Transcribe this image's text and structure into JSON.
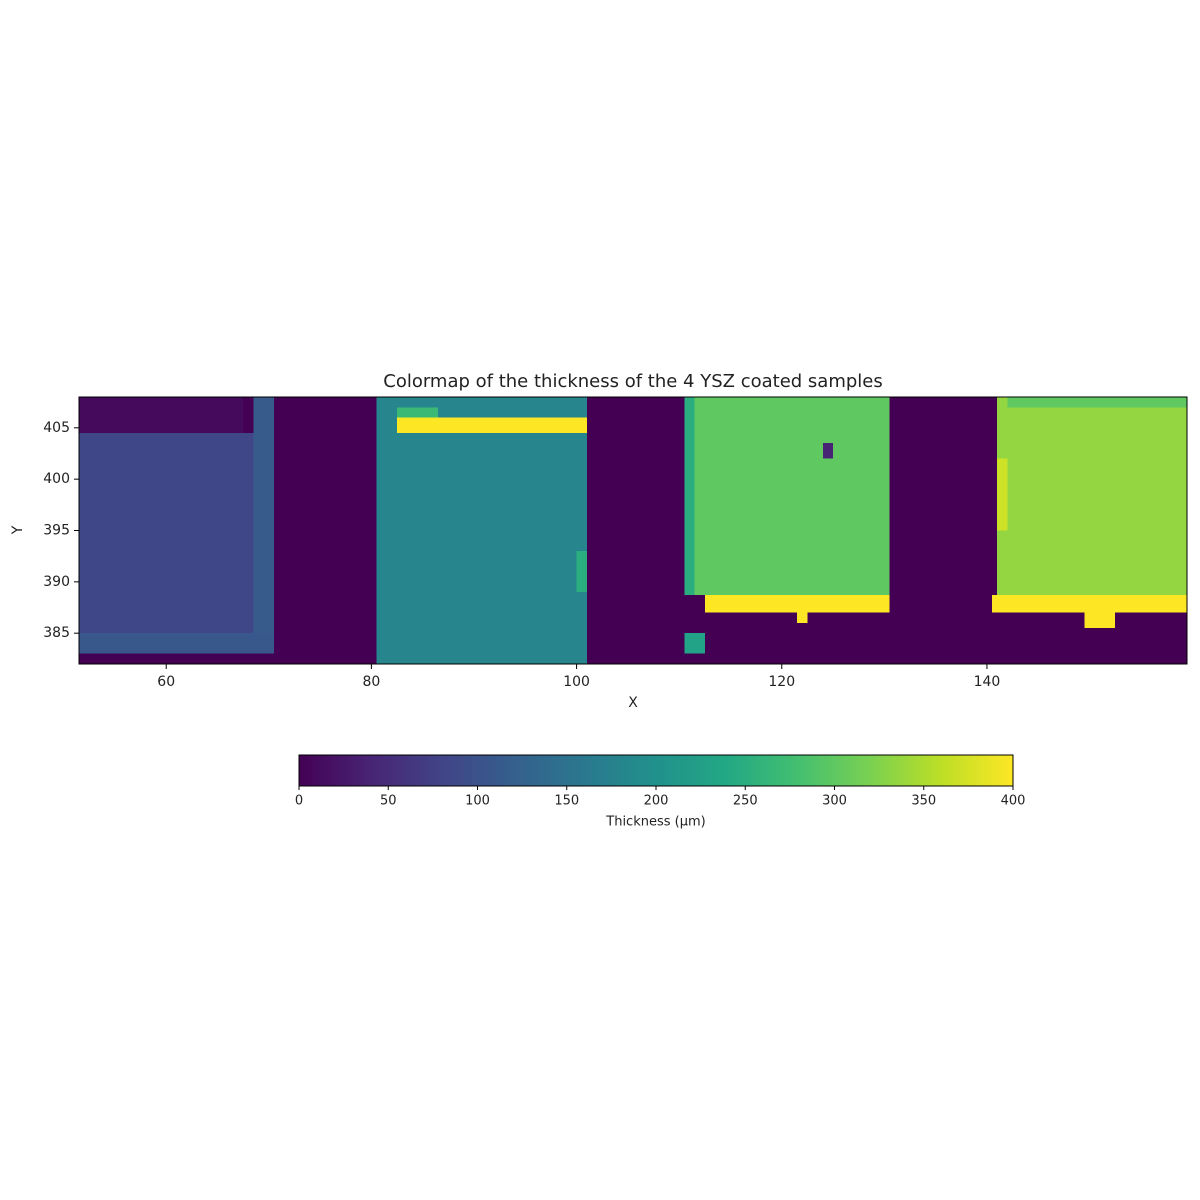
{
  "chart_data": {
    "type": "heatmap",
    "title": "Colormap of the thickness of the 4 YSZ coated samples",
    "x_label": "X",
    "y_label": "Y",
    "xlim": [
      51.5,
      159.5
    ],
    "ylim": [
      382,
      408
    ],
    "xticks": [
      60,
      80,
      100,
      120,
      140
    ],
    "yticks": [
      385,
      390,
      395,
      400,
      405
    ],
    "colormap": "viridis",
    "colorbar_label": "Thickness (μm)",
    "clim": [
      0,
      400
    ],
    "cticks": [
      0,
      50,
      100,
      150,
      200,
      250,
      300,
      350,
      400
    ],
    "regions": [
      {
        "x": [
          51.5,
          159.5
        ],
        "y": [
          382,
          408
        ],
        "value": 0
      },
      {
        "x": [
          51.5,
          68.5
        ],
        "y": [
          383,
          404.5
        ],
        "value": 85
      },
      {
        "x": [
          51.5,
          67.5
        ],
        "y": [
          404.5,
          408
        ],
        "value": 10
      },
      {
        "x": [
          68.5,
          70.5
        ],
        "y": [
          383,
          408
        ],
        "value": 115
      },
      {
        "x": [
          51.5,
          70.5
        ],
        "y": [
          383,
          385
        ],
        "value": 110
      },
      {
        "x": [
          80.5,
          101
        ],
        "y": [
          382,
          408
        ],
        "value": 180
      },
      {
        "x": [
          82.5,
          86.5
        ],
        "y": [
          406,
          407
        ],
        "value": 270
      },
      {
        "x": [
          82.5,
          101
        ],
        "y": [
          404.5,
          406
        ],
        "value": 400
      },
      {
        "x": [
          100,
          101
        ],
        "y": [
          389,
          393
        ],
        "value": 250
      },
      {
        "x": [
          110.5,
          130.5
        ],
        "y": [
          388.7,
          408
        ],
        "value": 300
      },
      {
        "x": [
          110.5,
          111.5
        ],
        "y": [
          388.7,
          408
        ],
        "value": 250
      },
      {
        "x": [
          124,
          125
        ],
        "y": [
          402,
          403.5
        ],
        "value": 40
      },
      {
        "x": [
          112.5,
          130.5
        ],
        "y": [
          387,
          388.7
        ],
        "value": 400
      },
      {
        "x": [
          121.5,
          122.5
        ],
        "y": [
          386,
          387
        ],
        "value": 400
      },
      {
        "x": [
          110.5,
          112.5
        ],
        "y": [
          383,
          385
        ],
        "value": 230
      },
      {
        "x": [
          141,
          159.5
        ],
        "y": [
          388.7,
          408
        ],
        "value": 335
      },
      {
        "x": [
          141,
          142
        ],
        "y": [
          395,
          402
        ],
        "value": 370
      },
      {
        "x": [
          140.5,
          159.5
        ],
        "y": [
          387,
          388.7
        ],
        "value": 400
      },
      {
        "x": [
          149.5,
          152.5
        ],
        "y": [
          385.5,
          387
        ],
        "value": 400
      },
      {
        "x": [
          142,
          159.5
        ],
        "y": [
          407,
          408
        ],
        "value": 300
      }
    ]
  }
}
